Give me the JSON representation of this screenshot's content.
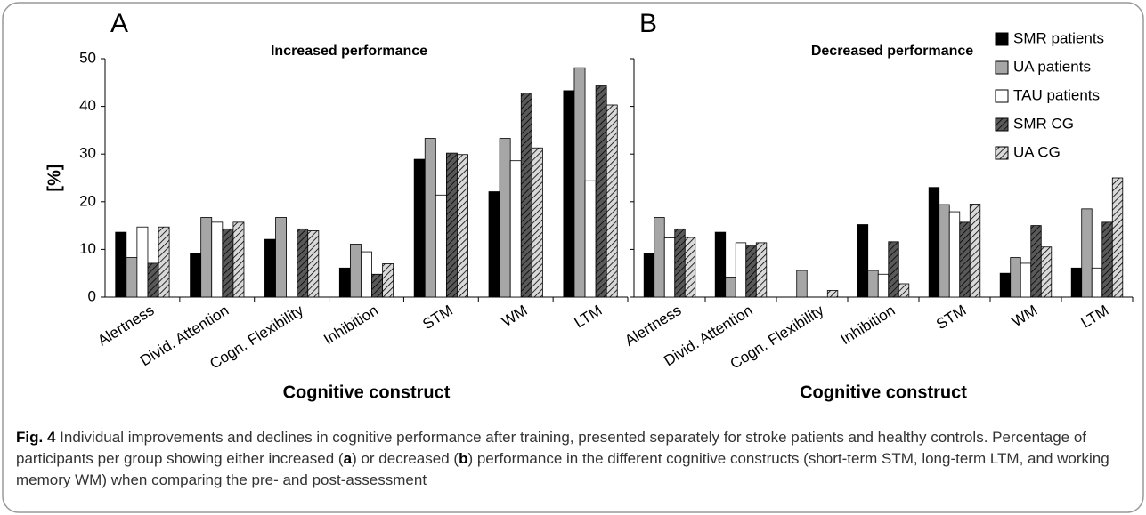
{
  "chart_data": [
    {
      "type": "bar",
      "panel": "A",
      "title": "Increased performance",
      "ylabel": "[%]",
      "xlabel": "Cognitive construct",
      "categories": [
        "Alertness",
        "Divid. Attention",
        "Cogn. Flexibility",
        "Inhibition",
        "STM",
        "WM",
        "LTM"
      ],
      "series": [
        {
          "name": "SMR patients",
          "color": "#000000",
          "hatch": false,
          "values": [
            13.6,
            9.1,
            12.1,
            6.1,
            28.9,
            22.1,
            43.3
          ]
        },
        {
          "name": "UA patients",
          "color": "#a6a6a6",
          "hatch": false,
          "values": [
            8.3,
            16.7,
            16.7,
            11.1,
            33.3,
            33.3,
            48.1
          ]
        },
        {
          "name": "TAU patients",
          "color": "#ffffff",
          "hatch": false,
          "values": [
            14.7,
            15.7,
            0,
            9.5,
            21.4,
            28.6,
            24.4
          ]
        },
        {
          "name": "SMR CG",
          "color": "#595959",
          "hatch": true,
          "values": [
            7.1,
            14.3,
            14.3,
            4.8,
            30.2,
            42.8,
            44.3
          ]
        },
        {
          "name": "UA CG",
          "color": "#d9d9d9",
          "hatch": true,
          "values": [
            14.7,
            15.7,
            13.9,
            7.0,
            29.9,
            31.3,
            40.3
          ]
        }
      ],
      "ylim": [
        0,
        50
      ],
      "yticks": [
        0,
        10,
        20,
        30,
        40,
        50
      ],
      "show_ytick_labels": true,
      "legend": false
    },
    {
      "type": "bar",
      "panel": "B",
      "title": "Decreased performance",
      "xlabel": "Cognitive construct",
      "categories": [
        "Alertness",
        "Divid. Attention",
        "Cogn. Flexibility",
        "Inhibition",
        "STM",
        "WM",
        "LTM"
      ],
      "series": [
        {
          "name": "SMR patients",
          "color": "#000000",
          "hatch": false,
          "values": [
            9.1,
            13.6,
            0,
            15.2,
            23.0,
            5.0,
            6.1
          ]
        },
        {
          "name": "UA patients",
          "color": "#a6a6a6",
          "hatch": false,
          "values": [
            16.7,
            4.2,
            5.6,
            5.6,
            19.4,
            8.3,
            18.5
          ]
        },
        {
          "name": "TAU patients",
          "color": "#ffffff",
          "hatch": false,
          "values": [
            12.4,
            11.4,
            0,
            4.8,
            17.9,
            7.1,
            6.1
          ]
        },
        {
          "name": "SMR CG",
          "color": "#595959",
          "hatch": true,
          "values": [
            14.3,
            10.7,
            0,
            11.6,
            15.7,
            15.0,
            15.7
          ]
        },
        {
          "name": "UA CG",
          "color": "#d9d9d9",
          "hatch": true,
          "values": [
            12.5,
            11.4,
            1.4,
            2.8,
            19.5,
            10.5,
            25.0
          ]
        }
      ],
      "ylim": [
        0,
        50
      ],
      "yticks": [
        0,
        10,
        20,
        30,
        40,
        50
      ],
      "show_ytick_labels": false,
      "legend": "upper right"
    }
  ],
  "caption": {
    "label": "Fig. 4",
    "parts": [
      "Individual improvements and declines in cognitive performance after training, presented separately for stroke patients and healthy controls. Percentage of participants per group showing either increased (",
      "a",
      ") or decreased (",
      "b",
      ") performance in the different cognitive constructs (short-term STM, long-term LTM, and working memory WM) when comparing the pre- and post-assessment"
    ]
  }
}
